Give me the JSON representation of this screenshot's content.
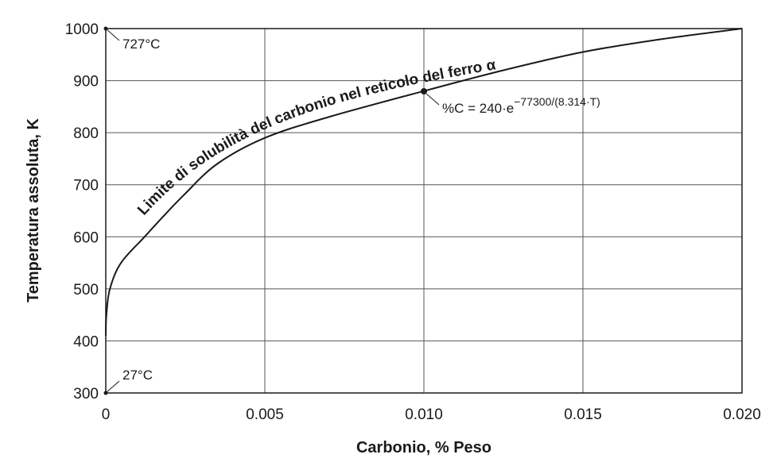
{
  "chart_data": {
    "type": "line",
    "title": "",
    "xlabel": "Carbonio, % Peso",
    "ylabel": "Temperatura assoluta, K",
    "xlim": [
      0,
      0.02
    ],
    "ylim": [
      300,
      1000
    ],
    "x_ticks": [
      "0",
      "0.005",
      "0.010",
      "0.015",
      "0.020"
    ],
    "x_tick_values": [
      0,
      0.005,
      0.01,
      0.015,
      0.02
    ],
    "y_ticks": [
      "300",
      "400",
      "500",
      "600",
      "700",
      "800",
      "900",
      "1000"
    ],
    "y_tick_values": [
      300,
      400,
      500,
      600,
      700,
      800,
      900,
      1000
    ],
    "grid": true,
    "series": [
      {
        "name": "Limite di solubilità del carbonio nel reticolo del ferro α",
        "formula": "%C = 240·e^(−77300/(8.314·T))",
        "x": [
          0.0,
          2e-05,
          0.00013,
          0.00048,
          0.00122,
          0.00182,
          0.00245,
          0.0035,
          0.005,
          0.007,
          0.01,
          0.0125,
          0.015,
          0.0175,
          0.02
        ],
        "y": [
          410,
          450,
          500,
          550,
          600,
          640,
          680,
          740,
          790,
          830,
          880,
          920,
          955,
          980,
          1000
        ]
      }
    ],
    "annotations": {
      "top_marker": "727°C",
      "bottom_marker": "27°C",
      "formula_prefix": "%C = 240·e",
      "formula_exponent": "−77300/(8.314·T)",
      "curve_label": "Limite di solubilità del carbonio nel reticolo del ferro α"
    },
    "marked_points": [
      {
        "x": 0.0,
        "y": 1000,
        "label": "727°C"
      },
      {
        "x": 0.0,
        "y": 300,
        "label": "27°C"
      },
      {
        "x": 0.01,
        "y": 880,
        "label": "formula"
      }
    ]
  }
}
